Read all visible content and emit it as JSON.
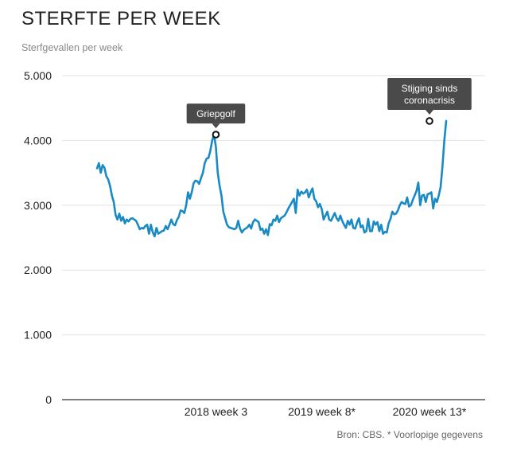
{
  "header": {
    "title": "STERFTE PER WEEK",
    "subtitle": "Sterfgevallen per week"
  },
  "footer": {
    "source": "Bron: CBS. * Voorlopige gegevens"
  },
  "colors": {
    "line": "#1a8ac4",
    "grid": "#e2e2e2",
    "callout_bg": "#4a4a4a",
    "axis": "#333333"
  },
  "chart_data": {
    "type": "line",
    "title": "STERFTE PER WEEK",
    "ylabel": "Sterfgevallen per week",
    "xlabel": "",
    "ylim": [
      0,
      5000
    ],
    "yticks": [
      0,
      1000,
      2000,
      3000,
      4000,
      5000
    ],
    "ytick_labels": [
      "0",
      "1.000",
      "2.000",
      "3.000",
      "4.000",
      "5.000"
    ],
    "xticks": [
      {
        "week_index": 64,
        "label": "2018 week 3"
      },
      {
        "week_index": 121,
        "label": "2019 week 8*"
      },
      {
        "week_index": 179,
        "label": "2020 week 13*"
      }
    ],
    "grid": true,
    "annotations": [
      {
        "label": "Griepgolf",
        "week_index": 64,
        "value": 4090
      },
      {
        "label": "Stijging sinds coronacrisis",
        "lines": [
          "Stijging sinds",
          "coronacrisis"
        ],
        "week_index": 179,
        "value": 4300
      }
    ],
    "series": [
      {
        "values": [
          3570,
          3650,
          3500,
          3620,
          3580,
          3450,
          3400,
          3300,
          3150,
          3050,
          2850,
          2780,
          2870,
          2760,
          2820,
          2720,
          2780,
          2750,
          2790,
          2800,
          2780,
          2760,
          2700,
          2630,
          2650,
          2640,
          2680,
          2700,
          2560,
          2700,
          2580,
          2520,
          2650,
          2560,
          2580,
          2600,
          2610,
          2680,
          2630,
          2700,
          2780,
          2710,
          2690,
          2770,
          2820,
          2920,
          2910,
          2880,
          3000,
          3200,
          3100,
          3200,
          3340,
          3380,
          3370,
          3330,
          3420,
          3500,
          3650,
          3720,
          3730,
          3840,
          4000,
          4090,
          3900,
          3500,
          3300,
          3150,
          2900,
          2800,
          2700,
          2660,
          2650,
          2640,
          2630,
          2650,
          2760,
          2640,
          2580,
          2620,
          2640,
          2660,
          2700,
          2640,
          2740,
          2780,
          2760,
          2740,
          2620,
          2640,
          2560,
          2630,
          2540,
          2710,
          2690,
          2780,
          2760,
          2840,
          2740,
          2800,
          2820,
          2840,
          2890,
          2950,
          3000,
          3050,
          3100,
          2880,
          3240,
          3150,
          3210,
          3180,
          3200,
          3240,
          3120,
          3200,
          3260,
          3100,
          3060,
          2970,
          3020,
          2940,
          2780,
          2840,
          2900,
          2780,
          2760,
          2820,
          2880,
          2800,
          2760,
          2840,
          2760,
          2700,
          2650,
          2760,
          2700,
          2780,
          2650,
          2640,
          2730,
          2800,
          2660,
          2690,
          2580,
          2600,
          2790,
          2600,
          2600,
          2750,
          2700,
          2740,
          2600,
          2700,
          2560,
          2590,
          2580,
          2720,
          2790,
          2900,
          2860,
          2870,
          2920,
          3000,
          3050,
          3030,
          3020,
          3120,
          2980,
          3000,
          3080,
          3150,
          3220,
          3350,
          3000,
          3150,
          3160,
          3050,
          3170,
          3180,
          3200,
          2950,
          3100,
          3050,
          3150,
          3280,
          3600,
          4000,
          4300
        ]
      }
    ]
  }
}
